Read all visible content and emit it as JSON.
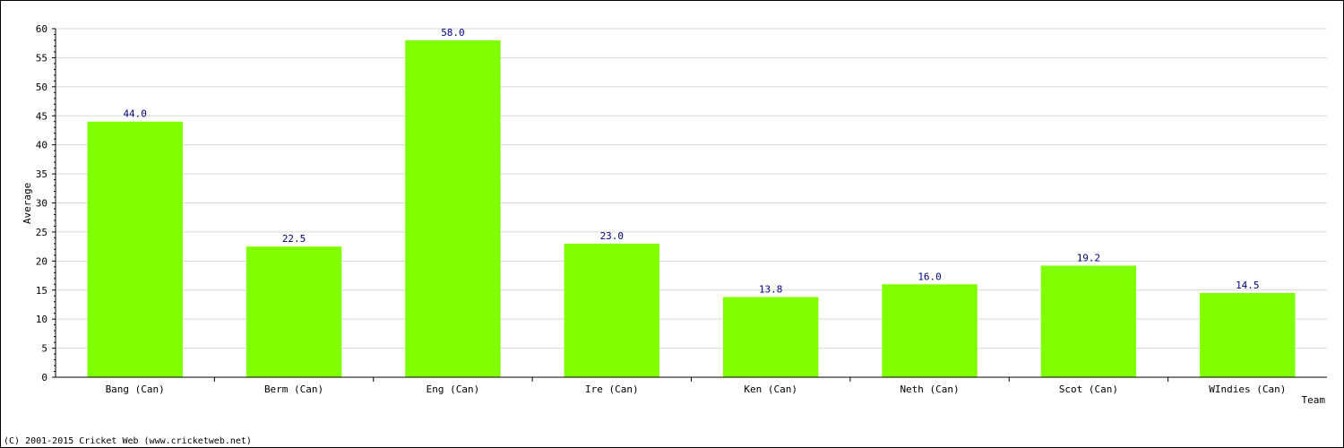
{
  "chart_data": {
    "type": "bar",
    "categories": [
      "Bang (Can)",
      "Berm (Can)",
      "Eng (Can)",
      "Ire (Can)",
      "Ken (Can)",
      "Neth (Can)",
      "Scot (Can)",
      "WIndies (Can)"
    ],
    "values": [
      44.0,
      22.5,
      58.0,
      23.0,
      13.8,
      16.0,
      19.2,
      14.5
    ],
    "value_labels": [
      "44.0",
      "22.5",
      "58.0",
      "23.0",
      "13.8",
      "16.0",
      "19.2",
      "14.5"
    ],
    "xlabel": "Team",
    "ylabel": "Average",
    "ylim": [
      0,
      60
    ],
    "yticks": [
      0,
      5,
      10,
      15,
      20,
      25,
      30,
      35,
      40,
      45,
      50,
      55,
      60
    ],
    "grid": true,
    "bar_color": "#7fff00",
    "value_label_color": "#000080"
  },
  "footer": {
    "copyright": "(C) 2001-2015 Cricket Web (www.cricketweb.net)"
  }
}
